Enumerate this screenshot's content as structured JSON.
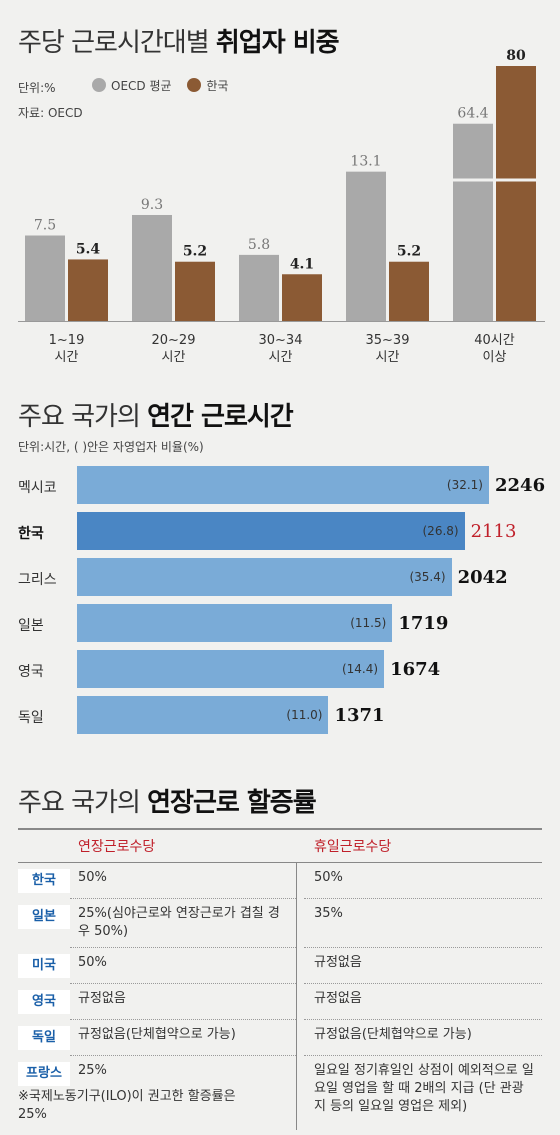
{
  "section1": {
    "title_normal": "주당 근로시간대별 ",
    "title_bold": "취업자 비중",
    "unit": "단위:%",
    "legend_oecd": "OECD 평균",
    "legend_korea": "한국",
    "source": "자료: OECD"
  },
  "colors": {
    "oecd": "#a9a9a9",
    "korea": "#8b5a34",
    "bar_blue": "#7aabd7",
    "bar_blue_highlight": "#4a86c4",
    "accent_red": "#c0202a"
  },
  "chart_data": [
    {
      "type": "bar",
      "categories": [
        [
          "1~19",
          "시간"
        ],
        [
          "20~29",
          "시간"
        ],
        [
          "30~34",
          "시간"
        ],
        [
          "35~39",
          "시간"
        ],
        [
          "40시간",
          "이상"
        ]
      ],
      "series": [
        {
          "name": "OECD 평균",
          "values": [
            7.5,
            9.3,
            5.8,
            13.1,
            64.4
          ],
          "labels": [
            "7.5",
            "9.3",
            "5.8",
            "13.1",
            "64.4"
          ]
        },
        {
          "name": "한국",
          "values": [
            5.4,
            5.2,
            4.1,
            5.2,
            80
          ],
          "labels": [
            "5.4",
            "5.2",
            "4.1",
            "5.2",
            "80"
          ]
        }
      ],
      "title": "주당 근로시간대별 취업자 비중",
      "ylabel": "",
      "xlabel": "",
      "axis_break": true,
      "legend": "top-left"
    },
    {
      "type": "bar",
      "orientation": "horizontal",
      "title": "주요 국가의 연간 근로시간",
      "categories": [
        "멕시코",
        "한국",
        "그리스",
        "일본",
        "영국",
        "독일"
      ],
      "values": [
        2246,
        2113,
        2042,
        1719,
        1674,
        1371
      ],
      "self_employed_share": [
        32.1,
        26.8,
        35.4,
        11.5,
        14.4,
        11.0
      ],
      "value_labels": [
        "2246",
        "2113",
        "2042",
        "1719",
        "1674",
        "1371"
      ],
      "share_labels": [
        "(32.1)",
        "(26.8)",
        "(35.4)",
        "(11.5)",
        "(14.4)",
        "(11.0)"
      ],
      "highlight": "한국"
    }
  ],
  "section2": {
    "title_normal": "주요 국가의 ",
    "title_bold": "연간 근로시간",
    "unit": "단위:시간, ( )안은 자영업자 비율(%)"
  },
  "section3": {
    "title_normal": "주요 국가의 ",
    "title_bold": "연장근로 할증률",
    "col_overtime": "연장근로수당",
    "col_holiday": "휴일근로수당",
    "rows": [
      {
        "country": "한국",
        "overtime": "50%",
        "holiday": "50%"
      },
      {
        "country": "일본",
        "overtime": "25%(심야근로와 연장근로가 겹칠 경우 50%)",
        "holiday": "35%"
      },
      {
        "country": "미국",
        "overtime": "50%",
        "holiday": "규정없음"
      },
      {
        "country": "영국",
        "overtime": "규정없음",
        "holiday": "규정없음"
      },
      {
        "country": "독일",
        "overtime": "규정없음(단체협약으로 가능)",
        "holiday": "규정없음(단체협약으로 가능)"
      },
      {
        "country": "프랑스",
        "overtime": "25%",
        "holiday": "일요일 정기휴일인 상점이 예외적으로 일요일 영업을 할 때 2배의 지급 (단 관광지 등의 일요일 영업은 제외)"
      }
    ],
    "note": "※국제노동기구(ILO)이 권고한 할증률은 25%"
  }
}
